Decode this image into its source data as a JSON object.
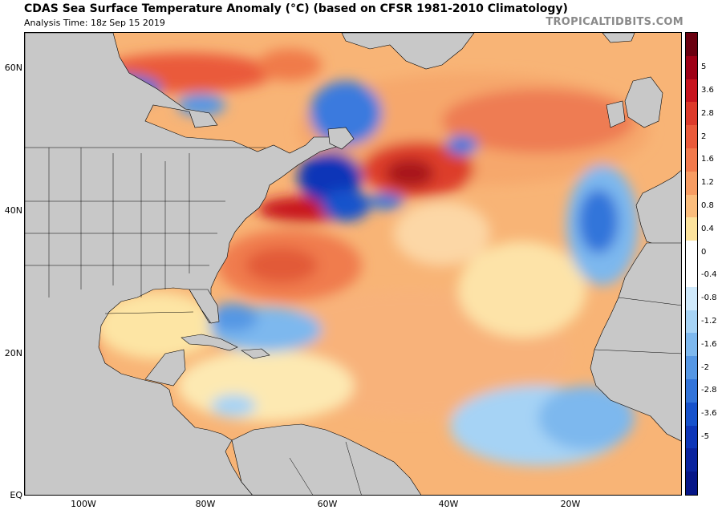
{
  "header": {
    "title": "CDAS Sea Surface Temperature Anomaly (°C) (based on CFSR 1981-2010 Climatology)",
    "analysis_time": "Analysis Time: 18z Sep 15 2019",
    "brand": "TROPICALTIDBITS.COM"
  },
  "map": {
    "region": "North Atlantic",
    "lat_range": [
      0,
      65
    ],
    "lon_range": [
      -110,
      0
    ],
    "lat_labels": [
      {
        "lat": 60,
        "text": "60N"
      },
      {
        "lat": 40,
        "text": "40N"
      },
      {
        "lat": 20,
        "text": "20N"
      },
      {
        "lat": 0,
        "text": "EQ"
      }
    ],
    "lon_labels": [
      {
        "lon": -100,
        "text": "100W"
      },
      {
        "lon": -80,
        "text": "80W"
      },
      {
        "lon": -60,
        "text": "60W"
      },
      {
        "lon": -40,
        "text": "40W"
      },
      {
        "lon": -20,
        "text": "20W"
      }
    ],
    "land_color": "#c8c8c8",
    "border_color": "#000000"
  },
  "colorbar": {
    "labels": [
      "5",
      "3.6",
      "2.8",
      "2",
      "1.6",
      "1.2",
      "0.8",
      "0.4",
      "0",
      "-0.4",
      "-0.8",
      "-1.2",
      "-1.6",
      "-2",
      "-2.8",
      "-3.6",
      "-5"
    ],
    "colors": [
      "#6a0010",
      "#9e0016",
      "#c8141e",
      "#dd3a2a",
      "#ea5a3a",
      "#f27a4c",
      "#f79c62",
      "#fbbd7c",
      "#fde39c",
      "#ffffff",
      "#ffffff",
      "#cfe9fb",
      "#a6d3f5",
      "#7db8ee",
      "#5597e4",
      "#3274da",
      "#1652cc",
      "#0d36b8",
      "#0a239e",
      "#061688"
    ]
  }
}
